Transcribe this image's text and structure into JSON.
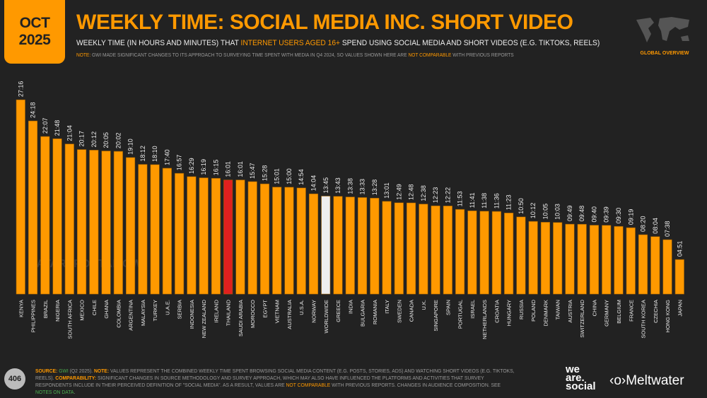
{
  "header": {
    "month": "OCT",
    "year": "2025",
    "title": "WEEKLY TIME: SOCIAL MEDIA INC. SHORT VIDEO",
    "subtitle_pre": "WEEKLY TIME (IN HOURS AND MINUTES) THAT ",
    "subtitle_hl": "INTERNET USERS AGED 16+",
    "subtitle_post": " SPEND USING SOCIAL MEDIA AND SHORT VIDEOS (E.G. TIKTOKS, REELS)",
    "note_label": "NOTE:",
    "note_pre": " GWI MADE SIGNIFICANT CHANGES TO ITS APPROACH TO SURVEYING TIME SPENT WITH MEDIA IN Q4 2024, SO VALUES SHOWN HERE ARE ",
    "note_hl": "NOT COMPARABLE",
    "note_post": " WITH PREVIOUS REPORTS",
    "region_label": "GLOBAL OVERVIEW"
  },
  "watermark": "DATAREPORTAL   GWI.",
  "colors": {
    "bar": "#ff9900",
    "highlight": "#e0201f",
    "worldwide": "#eeeeee",
    "background": "#222222"
  },
  "chart_data": {
    "type": "bar",
    "title": "WEEKLY TIME: SOCIAL MEDIA INC. SHORT VIDEO",
    "value_format": "hh:mm",
    "categories": [
      "KENYA",
      "PHILIPPINES",
      "BRAZIL",
      "NIGERIA",
      "SOUTH AFRICA",
      "MEXICO",
      "CHILE",
      "GHANA",
      "COLOMBIA",
      "ARGENTINA",
      "MALAYSIA",
      "TURKEY",
      "U.A.E.",
      "SERBIA",
      "INDONESIA",
      "NEW ZEALAND",
      "IRELAND",
      "THAILAND",
      "SAUDI ARABIA",
      "MOROCCO",
      "EGYPT",
      "VIETNAM",
      "AUSTRALIA",
      "U.S.A.",
      "NORWAY",
      "WORLDWIDE",
      "GREECE",
      "INDIA",
      "BULGARIA",
      "ROMANIA",
      "ITALY",
      "SWEDEN",
      "CANADA",
      "U.K.",
      "SINGAPORE",
      "SPAIN",
      "PORTUGAL",
      "ISRAEL",
      "NETHERLANDS",
      "CROATIA",
      "HUNGARY",
      "RUSSIA",
      "POLAND",
      "DENMARK",
      "TAIWAN",
      "AUSTRIA",
      "SWITZERLAND",
      "CHINA",
      "GERMANY",
      "BELGIUM",
      "FRANCE",
      "SOUTH KOREA",
      "CZECHIA",
      "HONG KONG",
      "JAPAN"
    ],
    "values": [
      "27:16",
      "24:18",
      "22:07",
      "21:48",
      "21:04",
      "20:17",
      "20:12",
      "20:05",
      "20:02",
      "19:10",
      "18:12",
      "18:10",
      "17:40",
      "16:57",
      "16:29",
      "16:19",
      "16:15",
      "16:01",
      "16:01",
      "15:47",
      "15:28",
      "15:01",
      "15:00",
      "14:54",
      "14:04",
      "13:45",
      "13:43",
      "13:38",
      "13:33",
      "13:28",
      "13:01",
      "12:49",
      "12:48",
      "12:38",
      "12:23",
      "12:22",
      "11:53",
      "11:41",
      "11:38",
      "11:36",
      "11:23",
      "10:50",
      "10:12",
      "10:05",
      "10:03",
      "09:49",
      "09:48",
      "09:40",
      "09:39",
      "09:30",
      "09:19",
      "08:20",
      "08:04",
      "07:38",
      "04:51"
    ],
    "highlighted": "THAILAND",
    "reference": "WORLDWIDE",
    "grid": false
  },
  "footer": {
    "page": "406",
    "source_label": "SOURCE:",
    "source_name": "GWI",
    "source_rest": " (Q2 2025). ",
    "note_label": "NOTE:",
    "note_text": " VALUES REPRESENT THE COMBINED WEEKLY TIME SPENT BROWSING SOCIAL MEDIA CONTENT (E.G. POSTS, STORIES, ADS) AND WATCHING SHORT VIDEOS (E.G. TIKTOKS, REELS). ",
    "comp_label": "COMPARABILITY:",
    "comp_text": " SIGNIFICANT CHANGES IN SOURCE METHODOLOGY AND SURVEY APPROACH, WHICH MAY ALSO HAVE INFLUENCED THE PLATFORMS AND ACTIVITIES THAT SURVEY RESPONDENTS INCLUDE IN THEIR PERCEIVED DEFINITION OF \"SOCIAL MEDIA\". AS A RESULT, VALUES ARE ",
    "comp_hl": "NOT COMPARABLE",
    "comp_post": " WITH PREVIOUS REPORTS. CHANGES IN AUDIENCE COMPOSITION. SEE ",
    "notes_link": "NOTES ON DATA",
    "end": ".",
    "logo1_l1": "we",
    "logo1_l2": "are.",
    "logo1_l3": "social",
    "logo2": "‹o›Meltwater"
  }
}
